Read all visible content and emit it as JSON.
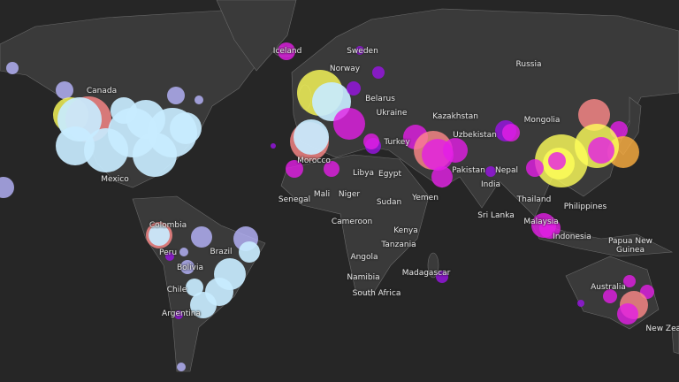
{
  "map": {
    "country_labels": [
      "Canada",
      "Mexico",
      "Colombia",
      "Peru",
      "Brazil",
      "Bolivia",
      "Chile",
      "Argentina",
      "Iceland",
      "Norway",
      "Sweden",
      "Belarus",
      "Ukraine",
      "Russia",
      "Kazakhstan",
      "Uzbekistan",
      "Mongolia",
      "Turkey",
      "Morocco",
      "Libya",
      "Egypt",
      "Senegal",
      "Mali",
      "Niger",
      "Sudan",
      "Yemen",
      "Pakistan",
      "Nepal",
      "India",
      "Sri Lanka",
      "Thailand",
      "Philippines",
      "Malaysia",
      "Indonesia",
      "Papua New Guinea",
      "Cameroon",
      "Kenya",
      "Tanzania",
      "Angola",
      "Namibia",
      "Madagascar",
      "South Africa",
      "Australia",
      "New Zealand"
    ],
    "colors": {
      "ocean": "#262626",
      "land": "#3a3a3a",
      "light_blue": "#c8ecff",
      "lavender": "#b9b6ff",
      "magenta": "#e41ee6",
      "purple": "#9a14e6",
      "yellow": "#ffff5a",
      "orange": "#ffb040",
      "pink": "#ff8a8a"
    }
  }
}
